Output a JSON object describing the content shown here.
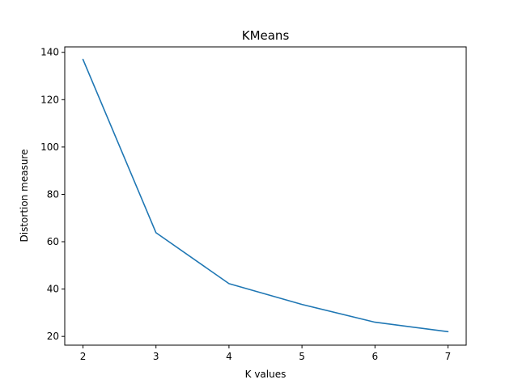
{
  "chart_data": {
    "type": "line",
    "title": "KMeans",
    "xlabel": "K values",
    "ylabel": "Distortion measure",
    "x": [
      2,
      3,
      4,
      5,
      6,
      7
    ],
    "series": [
      {
        "values": [
          137.0,
          63.8,
          42.3,
          33.5,
          26.0,
          22.0
        ],
        "color": "#1f77b4"
      }
    ],
    "xlim": [
      1.75,
      7.25
    ],
    "ylim": [
      16.3,
      142.3
    ],
    "xticks": [
      2,
      3,
      4,
      5,
      6,
      7
    ],
    "yticks": [
      20,
      40,
      60,
      80,
      100,
      120,
      140
    ],
    "grid": false,
    "legend": "none"
  }
}
